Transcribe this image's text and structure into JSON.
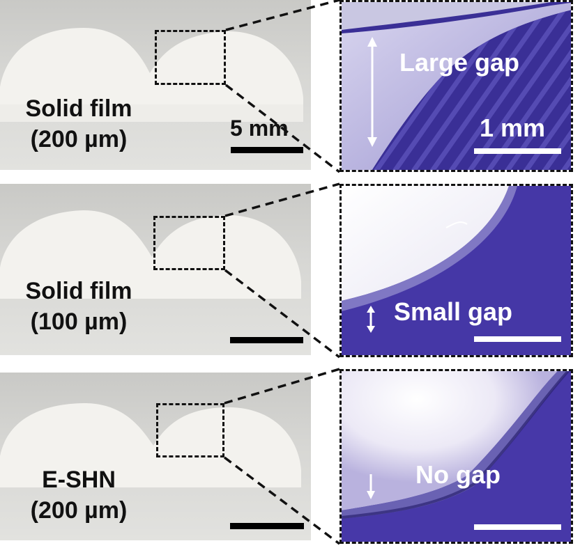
{
  "panels": [
    {
      "sample_label_line1": "Solid film",
      "sample_label_line2": "(200 µm)",
      "photo_scale_label": "5 mm",
      "gap_label": "Large gap",
      "micro_scale_label": "1 mm"
    },
    {
      "sample_label_line1": "Solid film",
      "sample_label_line2": "(100 µm)",
      "gap_label": "Small gap"
    },
    {
      "sample_label_line1": "E-SHN",
      "sample_label_line2": "(200 µm)",
      "gap_label": "No gap"
    }
  ]
}
